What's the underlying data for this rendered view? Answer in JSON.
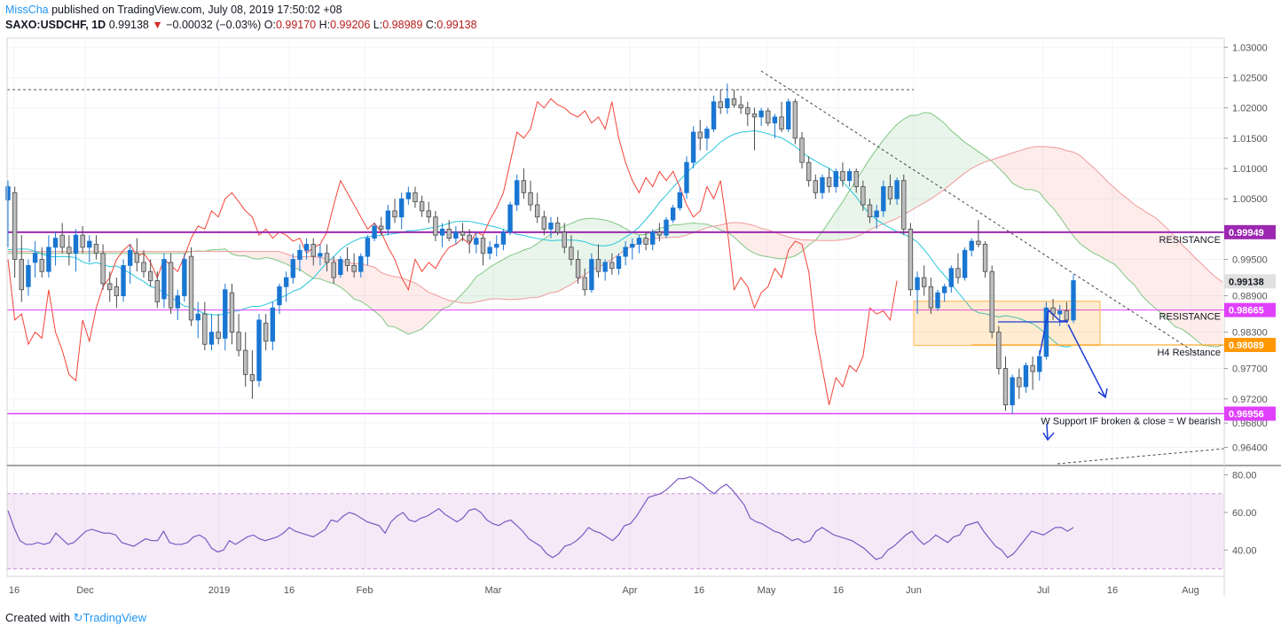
{
  "header": {
    "author": "MissCha",
    "published": " published on TradingView.com, July 08, 2019 17:50:02 +08",
    "symbol": "SAXO:USDCHF, 1D",
    "last": "0.99138",
    "change_arrow": "▼",
    "change": "−0.00032 (−0.03%)",
    "o_label": "O:",
    "o_value": "0.99170",
    "h_label": "H:",
    "h_value": "0.99206",
    "l_label": "L:",
    "l_value": "0.98989",
    "c_label": "C:",
    "c_value": "0.99138"
  },
  "footer": {
    "created_with": "Created with",
    "brand": "TradingView"
  },
  "colors": {
    "bull": "#1976d2",
    "bear": "#bdbdbd",
    "rsi": "#7e57c2",
    "resistance_top": "#9c27b0",
    "resistance_mid": "#e040fb",
    "h4": "#ff9800",
    "baseline": "#26c6da",
    "lagging": "#f44336"
  },
  "chart_data": [
    {
      "type": "candlestick",
      "symbol": "SAXO:USDCHF",
      "timeframe": "1D",
      "y_ticks": [
        "1.03000",
        "1.02500",
        "1.02000",
        "1.01500",
        "1.01000",
        "1.00500",
        "0.99500",
        "0.98900",
        "0.98300",
        "0.97700",
        "0.97200",
        "0.96800",
        "0.96400"
      ],
      "ylim": [
        0.961,
        1.0315
      ],
      "x_ticks": [
        "16",
        "Dec",
        "2019",
        "16",
        "Feb",
        "Mar",
        "Apr",
        "16",
        "May",
        "16",
        "Jun",
        "Jul",
        "16",
        "Aug"
      ],
      "price_labels": [
        {
          "value": "0.99949",
          "color": "#9c27b0"
        },
        {
          "value": "0.99138",
          "color": "#e0e0e0"
        },
        {
          "value": "0.98665",
          "color": "#e040fb"
        },
        {
          "value": "0.98089",
          "color": "#ff9800"
        },
        {
          "value": "0.96956",
          "color": "#e040fb"
        }
      ],
      "annotations": {
        "resistance_top": "RESISTANCE",
        "resistance_mid": "RESISTANCE",
        "h4_resistance": "H4 Resistance",
        "support_note": "W Support IF broken & close = W bearish"
      },
      "dashed_level": 1.023,
      "candles": [
        [
          1.0048,
          1.008,
          0.997,
          1.007
        ],
        [
          1.006,
          1.007,
          0.992,
          0.995
        ],
        [
          0.995,
          0.999,
          0.988,
          0.99
        ],
        [
          0.9905,
          0.995,
          0.989,
          0.994
        ],
        [
          0.9945,
          0.998,
          0.992,
          0.996
        ],
        [
          0.995,
          0.997,
          0.992,
          0.993
        ],
        [
          0.993,
          0.999,
          0.992,
          0.997
        ],
        [
          0.997,
          0.9995,
          0.994,
          0.9985
        ],
        [
          0.999,
          1.001,
          0.996,
          0.997
        ],
        [
          0.997,
          0.999,
          0.994,
          0.996
        ],
        [
          0.996,
          1.0,
          0.993,
          0.999
        ],
        [
          0.999,
          1.0005,
          0.996,
          0.997
        ],
        [
          0.997,
          0.999,
          0.9945,
          0.998
        ],
        [
          0.9975,
          0.999,
          0.995,
          0.996
        ],
        [
          0.996,
          0.9975,
          0.99,
          0.991
        ],
        [
          0.991,
          0.993,
          0.988,
          0.99
        ],
        [
          0.9905,
          0.992,
          0.987,
          0.989
        ],
        [
          0.989,
          0.995,
          0.988,
          0.994
        ],
        [
          0.994,
          0.9975,
          0.991,
          0.9965
        ],
        [
          0.996,
          0.9985,
          0.993,
          0.9945
        ],
        [
          0.9945,
          0.9965,
          0.992,
          0.993
        ],
        [
          0.993,
          0.995,
          0.9905,
          0.9915
        ],
        [
          0.9915,
          0.993,
          0.987,
          0.988
        ],
        [
          0.9885,
          0.996,
          0.987,
          0.995
        ],
        [
          0.9945,
          0.996,
          0.986,
          0.987
        ],
        [
          0.987,
          0.99,
          0.985,
          0.989
        ],
        [
          0.989,
          0.996,
          0.988,
          0.995
        ],
        [
          0.9955,
          0.997,
          0.984,
          0.985
        ],
        [
          0.985,
          0.988,
          0.982,
          0.986
        ],
        [
          0.986,
          0.988,
          0.98,
          0.981
        ],
        [
          0.981,
          0.986,
          0.98,
          0.983
        ],
        [
          0.983,
          0.986,
          0.981,
          0.982
        ],
        [
          0.982,
          0.991,
          0.98,
          0.99
        ],
        [
          0.9895,
          0.991,
          0.981,
          0.983
        ],
        [
          0.983,
          0.986,
          0.979,
          0.98
        ],
        [
          0.98,
          0.983,
          0.974,
          0.976
        ],
        [
          0.976,
          0.98,
          0.972,
          0.975
        ],
        [
          0.975,
          0.986,
          0.974,
          0.985
        ],
        [
          0.9845,
          0.986,
          0.98,
          0.9815
        ],
        [
          0.9815,
          0.988,
          0.98,
          0.987
        ],
        [
          0.9875,
          0.991,
          0.986,
          0.9905
        ],
        [
          0.9905,
          0.993,
          0.988,
          0.992
        ],
        [
          0.992,
          0.996,
          0.991,
          0.995
        ],
        [
          0.995,
          0.9975,
          0.993,
          0.9965
        ],
        [
          0.9965,
          0.9985,
          0.995,
          0.9975
        ],
        [
          0.9975,
          0.9985,
          0.994,
          0.9955
        ],
        [
          0.9955,
          0.9975,
          0.994,
          0.996
        ],
        [
          0.996,
          0.9975,
          0.993,
          0.9945
        ],
        [
          0.9945,
          0.9955,
          0.991,
          0.992
        ],
        [
          0.9925,
          0.9955,
          0.992,
          0.995
        ],
        [
          0.995,
          0.997,
          0.993,
          0.994
        ],
        [
          0.994,
          0.996,
          0.992,
          0.993
        ],
        [
          0.993,
          0.996,
          0.992,
          0.9955
        ],
        [
          0.9955,
          0.999,
          0.994,
          0.9985
        ],
        [
          0.9985,
          1.001,
          0.998,
          1.0005
        ],
        [
          1.0005,
          1.002,
          0.999,
          1.0
        ],
        [
          1.0,
          1.004,
          0.999,
          1.003
        ],
        [
          1.003,
          1.005,
          1.001,
          1.002
        ],
        [
          1.002,
          1.006,
          1.0,
          1.005
        ],
        [
          1.005,
          1.007,
          1.004,
          1.006
        ],
        [
          1.006,
          1.007,
          1.0035,
          1.0045
        ],
        [
          1.0045,
          1.0055,
          1.002,
          1.003
        ],
        [
          1.003,
          1.0045,
          1.001,
          1.002
        ],
        [
          1.002,
          1.003,
          0.998,
          0.999
        ],
        [
          0.999,
          1.001,
          0.997,
          1.0
        ],
        [
          1.0,
          1.0015,
          0.998,
          0.9985
        ],
        [
          0.9985,
          1.0005,
          0.9975,
          0.9995
        ],
        [
          0.9995,
          1.001,
          0.998,
          0.999
        ],
        [
          0.999,
          1.0,
          0.996,
          0.998
        ],
        [
          0.9975,
          0.9995,
          0.996,
          0.9985
        ],
        [
          0.9985,
          0.999,
          0.994,
          0.996
        ],
        [
          0.996,
          0.998,
          0.995,
          0.997
        ],
        [
          0.997,
          0.999,
          0.9955,
          0.9975
        ],
        [
          0.9975,
          1.0,
          0.9965,
          0.9995
        ],
        [
          0.9995,
          1.0045,
          0.999,
          1.004
        ],
        [
          1.004,
          1.009,
          1.003,
          1.008
        ],
        [
          1.008,
          1.01,
          1.005,
          1.006
        ],
        [
          1.006,
          1.008,
          1.003,
          1.004
        ],
        [
          1.004,
          1.006,
          1.001,
          1.002
        ],
        [
          1.002,
          1.003,
          0.999,
          1.0
        ],
        [
          1.0,
          1.002,
          0.9985,
          1.001
        ],
        [
          1.001,
          1.002,
          0.999,
          0.9995
        ],
        [
          0.9995,
          1.001,
          0.996,
          0.997
        ],
        [
          0.997,
          0.999,
          0.994,
          0.995
        ],
        [
          0.995,
          0.9965,
          0.991,
          0.992
        ],
        [
          0.992,
          0.9935,
          0.989,
          0.99
        ],
        [
          0.99,
          0.996,
          0.9895,
          0.995
        ],
        [
          0.995,
          0.9975,
          0.992,
          0.993
        ],
        [
          0.993,
          0.995,
          0.9915,
          0.9945
        ],
        [
          0.9945,
          0.996,
          0.9925,
          0.9935
        ],
        [
          0.9935,
          0.996,
          0.9925,
          0.9955
        ],
        [
          0.9955,
          0.998,
          0.994,
          0.997
        ],
        [
          0.997,
          0.9985,
          0.995,
          0.9975
        ],
        [
          0.9975,
          0.999,
          0.996,
          0.9985
        ],
        [
          0.9985,
          0.9995,
          0.9965,
          0.9975
        ],
        [
          0.9975,
          1.0,
          0.9965,
          0.9995
        ],
        [
          0.9995,
          1.001,
          0.998,
          0.999
        ],
        [
          0.999,
          1.002,
          0.9985,
          1.0015
        ],
        [
          1.0015,
          1.004,
          1.001,
          1.0035
        ],
        [
          1.0035,
          1.007,
          1.003,
          1.006
        ],
        [
          1.006,
          1.012,
          1.005,
          1.011
        ],
        [
          1.011,
          1.017,
          1.01,
          1.016
        ],
        [
          1.016,
          1.018,
          1.013,
          1.015
        ],
        [
          1.015,
          1.017,
          1.013,
          1.0165
        ],
        [
          1.0165,
          1.022,
          1.016,
          1.021
        ],
        [
          1.021,
          1.023,
          1.019,
          1.02
        ],
        [
          1.02,
          1.024,
          1.019,
          1.0215
        ],
        [
          1.0215,
          1.023,
          1.02,
          1.0205
        ],
        [
          1.0205,
          1.022,
          1.019,
          1.02
        ],
        [
          1.02,
          1.021,
          1.017,
          1.019
        ],
        [
          1.019,
          1.02,
          1.013,
          1.0185
        ],
        [
          1.0185,
          1.02,
          1.017,
          1.0195
        ],
        [
          1.0195,
          1.02,
          1.017,
          1.0175
        ],
        [
          1.0175,
          1.019,
          1.015,
          1.0185
        ],
        [
          1.0185,
          1.021,
          1.016,
          1.0165
        ],
        [
          1.0165,
          1.0215,
          1.016,
          1.021
        ],
        [
          1.021,
          1.0215,
          1.014,
          1.015
        ],
        [
          1.015,
          1.016,
          1.01,
          1.011
        ],
        [
          1.011,
          1.012,
          1.007,
          1.008
        ],
        [
          1.008,
          1.009,
          1.005,
          1.006
        ],
        [
          1.006,
          1.009,
          1.005,
          1.0085
        ],
        [
          1.0085,
          1.01,
          1.006,
          1.007
        ],
        [
          1.007,
          1.01,
          1.006,
          1.0095
        ],
        [
          1.0095,
          1.011,
          1.007,
          1.008
        ],
        [
          1.008,
          1.01,
          1.007,
          1.0095
        ],
        [
          1.0095,
          1.01,
          1.006,
          1.007
        ],
        [
          1.007,
          1.008,
          1.003,
          1.004
        ],
        [
          1.004,
          1.005,
          1.001,
          1.002
        ],
        [
          1.002,
          1.004,
          1.0,
          1.003
        ],
        [
          1.003,
          1.008,
          1.002,
          1.007
        ],
        [
          1.007,
          1.009,
          1.004,
          1.005
        ],
        [
          1.005,
          1.0085,
          1.004,
          1.008
        ],
        [
          1.008,
          1.009,
          0.999,
          1.0
        ],
        [
          1.0,
          1.001,
          0.989,
          0.99
        ],
        [
          0.99,
          0.993,
          0.986,
          0.992
        ],
        [
          0.992,
          0.994,
          0.989,
          0.9905
        ],
        [
          0.9905,
          0.992,
          0.986,
          0.987
        ],
        [
          0.987,
          0.99,
          0.9865,
          0.9895
        ],
        [
          0.9895,
          0.991,
          0.988,
          0.9905
        ],
        [
          0.9905,
          0.994,
          0.9895,
          0.9935
        ],
        [
          0.9935,
          0.996,
          0.991,
          0.992
        ],
        [
          0.992,
          0.997,
          0.9915,
          0.9965
        ],
        [
          0.9965,
          0.9985,
          0.9955,
          0.998
        ],
        [
          0.998,
          1.0015,
          0.997,
          0.9975
        ],
        [
          0.9975,
          0.998,
          0.992,
          0.993
        ],
        [
          0.993,
          0.994,
          0.982,
          0.983
        ],
        [
          0.983,
          0.984,
          0.976,
          0.977
        ],
        [
          0.977,
          0.979,
          0.97,
          0.971
        ],
        [
          0.971,
          0.976,
          0.9695,
          0.9755
        ],
        [
          0.9755,
          0.977,
          0.972,
          0.974
        ],
        [
          0.974,
          0.978,
          0.973,
          0.9775
        ],
        [
          0.9775,
          0.979,
          0.9735,
          0.9765
        ],
        [
          0.9765,
          0.98,
          0.975,
          0.979
        ],
        [
          0.979,
          0.988,
          0.9785,
          0.987
        ],
        [
          0.987,
          0.9885,
          0.985,
          0.986
        ],
        [
          0.986,
          0.9875,
          0.984,
          0.9865
        ],
        [
          0.9865,
          0.988,
          0.9845,
          0.985
        ],
        [
          0.985,
          0.9925,
          0.9845,
          0.9915
        ]
      ]
    },
    {
      "type": "line",
      "indicator": "RSI",
      "y_ticks": [
        "80.00",
        "60.00",
        "40.00"
      ],
      "ylim": [
        26,
        84
      ],
      "band": [
        30,
        70
      ],
      "values": [
        61,
        52,
        45,
        43,
        43,
        44,
        43,
        44,
        49,
        46,
        43,
        44,
        47,
        50,
        51,
        50,
        49,
        49,
        48,
        44,
        43,
        42,
        44,
        46,
        45,
        45,
        50,
        44,
        43,
        43,
        44,
        47,
        48,
        46,
        41,
        39,
        40,
        45,
        43,
        45,
        47,
        48,
        46,
        45,
        46,
        47,
        49,
        52,
        50,
        49,
        48,
        47,
        49,
        51,
        56,
        55,
        58,
        60,
        59,
        57,
        55,
        54,
        53,
        49,
        55,
        58,
        60,
        56,
        55,
        57,
        58,
        60,
        62,
        59,
        57,
        55,
        57,
        61,
        62,
        60,
        56,
        54,
        53,
        55,
        56,
        53,
        50,
        46,
        44,
        42,
        38,
        36,
        38,
        42,
        43,
        45,
        48,
        52,
        50,
        49,
        47,
        45,
        48,
        53,
        54,
        58,
        63,
        68,
        69,
        70,
        72,
        75,
        78,
        78,
        79,
        77,
        75,
        72,
        70,
        73,
        75,
        72,
        68,
        64,
        57,
        55,
        54,
        52,
        50,
        49,
        47,
        45,
        46,
        44,
        45,
        50,
        52,
        50,
        48,
        47,
        46,
        45,
        43,
        41,
        38,
        35,
        36,
        40,
        42,
        45,
        48,
        50,
        46,
        43,
        45,
        48,
        46,
        44,
        47,
        48,
        53,
        54,
        55,
        50,
        46,
        42,
        40,
        36,
        38,
        42,
        46,
        50,
        49,
        48,
        50,
        52,
        52,
        50,
        52
      ]
    }
  ]
}
